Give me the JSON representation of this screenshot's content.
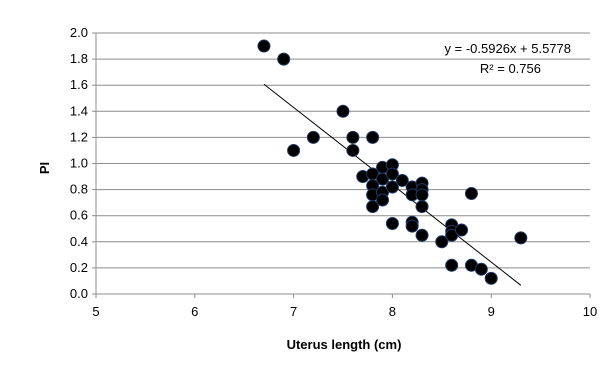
{
  "chart_data": {
    "type": "scatter",
    "title": "",
    "xlabel": "Uterus length (cm)",
    "ylabel": "PI",
    "xlim": [
      5,
      10
    ],
    "ylim": [
      0.0,
      2.0
    ],
    "x_ticks": [
      5,
      6,
      7,
      8,
      9,
      10
    ],
    "y_ticks": [
      0.0,
      0.2,
      0.4,
      0.6,
      0.8,
      1.0,
      1.2,
      1.4,
      1.6,
      1.8,
      2.0
    ],
    "x_tick_labels": [
      "5",
      "6",
      "7",
      "8",
      "9",
      "10"
    ],
    "y_tick_labels": [
      "0.0",
      "0.2",
      "0.4",
      "0.6",
      "0.8",
      "1.0",
      "1.2",
      "1.4",
      "1.6",
      "1.8",
      "2.0"
    ],
    "grid": "horizontal",
    "marker_color": "#000000",
    "trendline": {
      "slope": -0.5926,
      "intercept": 5.5778,
      "x_range": [
        6.7,
        9.3
      ],
      "equation_label": "y = -0.5926x + 5.5778",
      "r2_label": "R² = 0.756"
    },
    "points": [
      {
        "x": 6.7,
        "y": 1.9
      },
      {
        "x": 6.9,
        "y": 1.8
      },
      {
        "x": 7.0,
        "y": 1.1
      },
      {
        "x": 7.2,
        "y": 1.2
      },
      {
        "x": 7.5,
        "y": 1.4
      },
      {
        "x": 7.6,
        "y": 1.2
      },
      {
        "x": 7.6,
        "y": 1.1
      },
      {
        "x": 7.8,
        "y": 1.2
      },
      {
        "x": 7.7,
        "y": 0.9
      },
      {
        "x": 7.8,
        "y": 0.92
      },
      {
        "x": 7.8,
        "y": 0.83
      },
      {
        "x": 7.8,
        "y": 0.76
      },
      {
        "x": 7.8,
        "y": 0.67
      },
      {
        "x": 7.9,
        "y": 0.97
      },
      {
        "x": 7.9,
        "y": 0.88
      },
      {
        "x": 7.9,
        "y": 0.78
      },
      {
        "x": 7.9,
        "y": 0.72
      },
      {
        "x": 8.0,
        "y": 0.99
      },
      {
        "x": 8.0,
        "y": 0.92
      },
      {
        "x": 8.0,
        "y": 0.82
      },
      {
        "x": 8.0,
        "y": 0.54
      },
      {
        "x": 8.1,
        "y": 0.87
      },
      {
        "x": 8.2,
        "y": 0.82
      },
      {
        "x": 8.2,
        "y": 0.76
      },
      {
        "x": 8.2,
        "y": 0.55
      },
      {
        "x": 8.2,
        "y": 0.52
      },
      {
        "x": 8.3,
        "y": 0.85
      },
      {
        "x": 8.3,
        "y": 0.8
      },
      {
        "x": 8.3,
        "y": 0.76
      },
      {
        "x": 8.3,
        "y": 0.67
      },
      {
        "x": 8.3,
        "y": 0.45
      },
      {
        "x": 8.5,
        "y": 0.4
      },
      {
        "x": 8.6,
        "y": 0.53
      },
      {
        "x": 8.6,
        "y": 0.48
      },
      {
        "x": 8.6,
        "y": 0.45
      },
      {
        "x": 8.6,
        "y": 0.22
      },
      {
        "x": 8.7,
        "y": 0.49
      },
      {
        "x": 8.8,
        "y": 0.77
      },
      {
        "x": 8.8,
        "y": 0.22
      },
      {
        "x": 8.9,
        "y": 0.19
      },
      {
        "x": 9.0,
        "y": 0.12
      },
      {
        "x": 9.3,
        "y": 0.43
      }
    ]
  }
}
